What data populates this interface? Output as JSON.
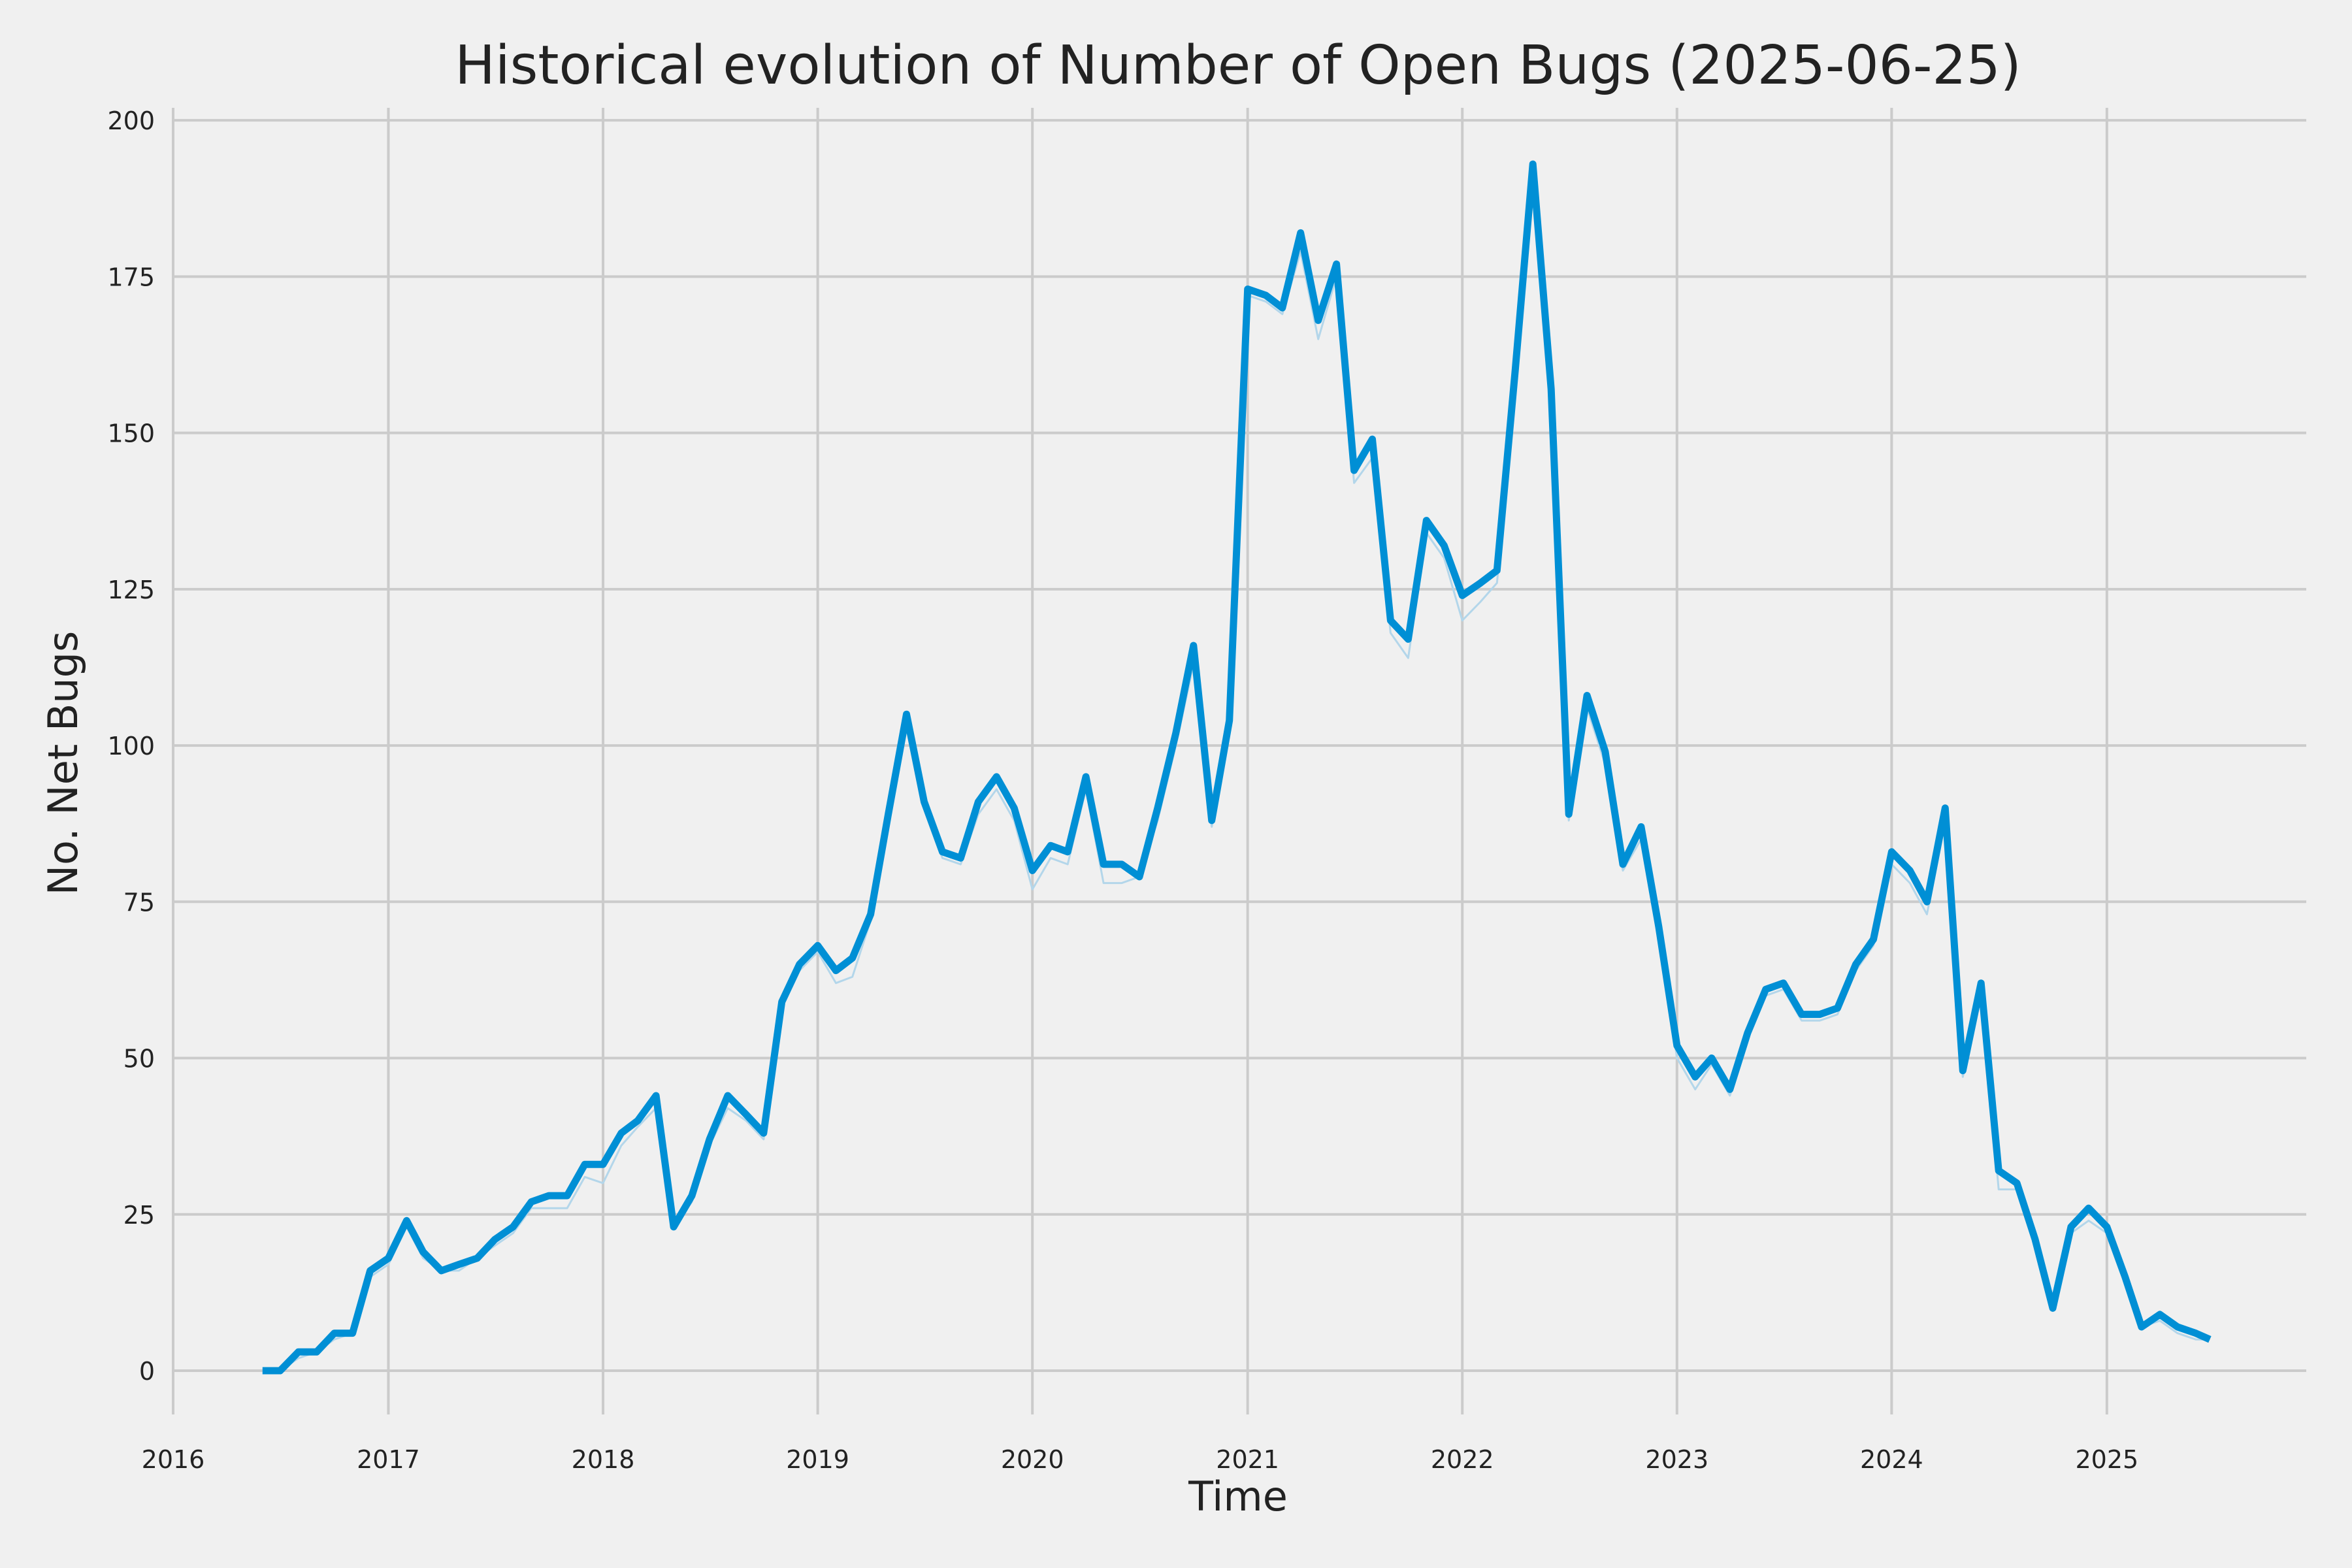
{
  "chart_data": {
    "type": "line",
    "title": "Historical evolution of Number of Open Bugs (2025-06-25)",
    "xlabel": "Time",
    "ylabel": "No. Net Bugs",
    "xlim": [
      "2016-01-01",
      "2025-12-06"
    ],
    "ylim": [
      -7,
      202
    ],
    "grid": true,
    "x_ticks": [
      {
        "value": "2016-01-01",
        "label": "2016"
      },
      {
        "value": "2017-01-01",
        "label": "2017"
      },
      {
        "value": "2018-01-01",
        "label": "2018"
      },
      {
        "value": "2019-01-01",
        "label": "2019"
      },
      {
        "value": "2020-01-01",
        "label": "2020"
      },
      {
        "value": "2021-01-01",
        "label": "2021"
      },
      {
        "value": "2022-01-01",
        "label": "2022"
      },
      {
        "value": "2023-01-01",
        "label": "2023"
      },
      {
        "value": "2024-01-01",
        "label": "2024"
      },
      {
        "value": "2025-01-01",
        "label": "2025"
      }
    ],
    "y_ticks": [
      0,
      25,
      50,
      75,
      100,
      125,
      150,
      175,
      200
    ],
    "colors": {
      "main": "#008fd5",
      "faint": "#b3d6ea",
      "grid": "#cbcbcb",
      "background": "#f0f0f0"
    },
    "series": [
      {
        "role": "main",
        "x": [
          "2016-06-01",
          "2016-07-01",
          "2016-08-01",
          "2016-09-01",
          "2016-10-01",
          "2016-11-01",
          "2016-12-01",
          "2017-01-01",
          "2017-02-01",
          "2017-03-01",
          "2017-04-01",
          "2017-05-01",
          "2017-06-01",
          "2017-07-01",
          "2017-08-01",
          "2017-09-01",
          "2017-10-01",
          "2017-11-01",
          "2017-12-01",
          "2018-01-01",
          "2018-02-01",
          "2018-03-01",
          "2018-04-01",
          "2018-05-01",
          "2018-06-01",
          "2018-07-01",
          "2018-08-01",
          "2018-09-01",
          "2018-10-01",
          "2018-11-01",
          "2018-12-01",
          "2019-01-01",
          "2019-02-01",
          "2019-03-01",
          "2019-04-01",
          "2019-05-01",
          "2019-06-01",
          "2019-07-01",
          "2019-08-01",
          "2019-09-01",
          "2019-10-01",
          "2019-11-01",
          "2019-12-01",
          "2020-01-01",
          "2020-02-01",
          "2020-03-01",
          "2020-04-01",
          "2020-05-01",
          "2020-06-01",
          "2020-07-01",
          "2020-08-01",
          "2020-09-01",
          "2020-10-01",
          "2020-11-01",
          "2020-12-01",
          "2021-01-01",
          "2021-02-01",
          "2021-03-01",
          "2021-04-01",
          "2021-05-01",
          "2021-06-01",
          "2021-07-01",
          "2021-08-01",
          "2021-09-01",
          "2021-10-01",
          "2021-11-01",
          "2021-12-01",
          "2022-01-01",
          "2022-02-01",
          "2022-03-01",
          "2022-04-01",
          "2022-05-01",
          "2022-06-01",
          "2022-07-01",
          "2022-08-01",
          "2022-09-01",
          "2022-10-01",
          "2022-11-01",
          "2022-12-01",
          "2023-01-01",
          "2023-02-01",
          "2023-03-01",
          "2023-04-01",
          "2023-05-01",
          "2023-06-01",
          "2023-07-01",
          "2023-08-01",
          "2023-09-01",
          "2023-10-01",
          "2023-11-01",
          "2023-12-01",
          "2024-01-01",
          "2024-02-01",
          "2024-03-01",
          "2024-04-01",
          "2024-05-01",
          "2024-06-01",
          "2024-07-01",
          "2024-08-01",
          "2024-09-01",
          "2024-10-01",
          "2024-11-01",
          "2024-12-01",
          "2025-01-01",
          "2025-02-01",
          "2025-03-01",
          "2025-04-01",
          "2025-05-01",
          "2025-06-01",
          "2025-06-25"
        ],
        "y": [
          0,
          0,
          3,
          3,
          6,
          6,
          16,
          18,
          24,
          19,
          16,
          17,
          18,
          21,
          23,
          27,
          28,
          28,
          33,
          33,
          38,
          40,
          44,
          23,
          28,
          37,
          44,
          41,
          38,
          59,
          65,
          68,
          64,
          66,
          73,
          89,
          105,
          91,
          83,
          82,
          91,
          95,
          90,
          80,
          84,
          83,
          95,
          81,
          81,
          79,
          90,
          102,
          116,
          88,
          104,
          173,
          172,
          170,
          182,
          168,
          177,
          144,
          149,
          120,
          117,
          136,
          132,
          124,
          126,
          128,
          160,
          193,
          157,
          89,
          108,
          99,
          81,
          87,
          71,
          52,
          47,
          50,
          45,
          54,
          61,
          62,
          57,
          57,
          58,
          65,
          69,
          83,
          80,
          75,
          90,
          48,
          62,
          32,
          30,
          21,
          10,
          23,
          26,
          23,
          15,
          7,
          9,
          7,
          6,
          5
        ]
      },
      {
        "role": "faint",
        "x": [
          "2016-06-01",
          "2016-07-01",
          "2016-08-01",
          "2016-09-01",
          "2016-10-01",
          "2016-11-01",
          "2016-12-01",
          "2017-01-01",
          "2017-02-01",
          "2017-03-01",
          "2017-04-01",
          "2017-05-01",
          "2017-06-01",
          "2017-07-01",
          "2017-08-01",
          "2017-09-01",
          "2017-10-01",
          "2017-11-01",
          "2017-12-01",
          "2018-01-01",
          "2018-02-01",
          "2018-03-01",
          "2018-04-01",
          "2018-05-01",
          "2018-06-01",
          "2018-07-01",
          "2018-08-01",
          "2018-09-01",
          "2018-10-01",
          "2018-11-01",
          "2018-12-01",
          "2019-01-01",
          "2019-02-01",
          "2019-03-01",
          "2019-04-01",
          "2019-05-01",
          "2019-06-01",
          "2019-07-01",
          "2019-08-01",
          "2019-09-01",
          "2019-10-01",
          "2019-11-01",
          "2019-12-01",
          "2020-01-01",
          "2020-02-01",
          "2020-03-01",
          "2020-04-01",
          "2020-05-01",
          "2020-06-01",
          "2020-07-01",
          "2020-08-01",
          "2020-09-01",
          "2020-10-01",
          "2020-11-01",
          "2020-12-01",
          "2021-01-01",
          "2021-02-01",
          "2021-03-01",
          "2021-04-01",
          "2021-05-01",
          "2021-06-01",
          "2021-07-01",
          "2021-08-01",
          "2021-09-01",
          "2021-10-01",
          "2021-11-01",
          "2021-12-01",
          "2022-01-01",
          "2022-02-01",
          "2022-03-01",
          "2022-04-01",
          "2022-05-01",
          "2022-06-01",
          "2022-07-01",
          "2022-08-01",
          "2022-09-01",
          "2022-10-01",
          "2022-11-01",
          "2022-12-01",
          "2023-01-01",
          "2023-02-01",
          "2023-03-01",
          "2023-04-01",
          "2023-05-01",
          "2023-06-01",
          "2023-07-01",
          "2023-08-01",
          "2023-09-01",
          "2023-10-01",
          "2023-11-01",
          "2023-12-01",
          "2024-01-01",
          "2024-02-01",
          "2024-03-01",
          "2024-04-01",
          "2024-05-01",
          "2024-06-01",
          "2024-07-01",
          "2024-08-01",
          "2024-09-01",
          "2024-10-01",
          "2024-11-01",
          "2024-12-01",
          "2025-01-01",
          "2025-02-01",
          "2025-03-01",
          "2025-04-01",
          "2025-05-01",
          "2025-06-01",
          "2025-06-25"
        ],
        "y": [
          0,
          0,
          2,
          3,
          5,
          6,
          15,
          17,
          23,
          18,
          16,
          16,
          18,
          20,
          22,
          26,
          26,
          26,
          31,
          30,
          36,
          39,
          42,
          23,
          27,
          36,
          42,
          40,
          37,
          58,
          64,
          67,
          62,
          63,
          72,
          88,
          103,
          90,
          82,
          81,
          89,
          93,
          88,
          77,
          82,
          81,
          93,
          78,
          78,
          79,
          88,
          100,
          113,
          87,
          102,
          172,
          171,
          169,
          179,
          165,
          175,
          142,
          146,
          118,
          114,
          134,
          130,
          120,
          123,
          126,
          157,
          190,
          155,
          88,
          106,
          97,
          80,
          85,
          70,
          50,
          45,
          49,
          44,
          53,
          60,
          61,
          56,
          56,
          57,
          64,
          68,
          81,
          78,
          73,
          88,
          47,
          60,
          29,
          29,
          20,
          10,
          22,
          24,
          22,
          14,
          7,
          8,
          6,
          5,
          5
        ]
      }
    ]
  }
}
